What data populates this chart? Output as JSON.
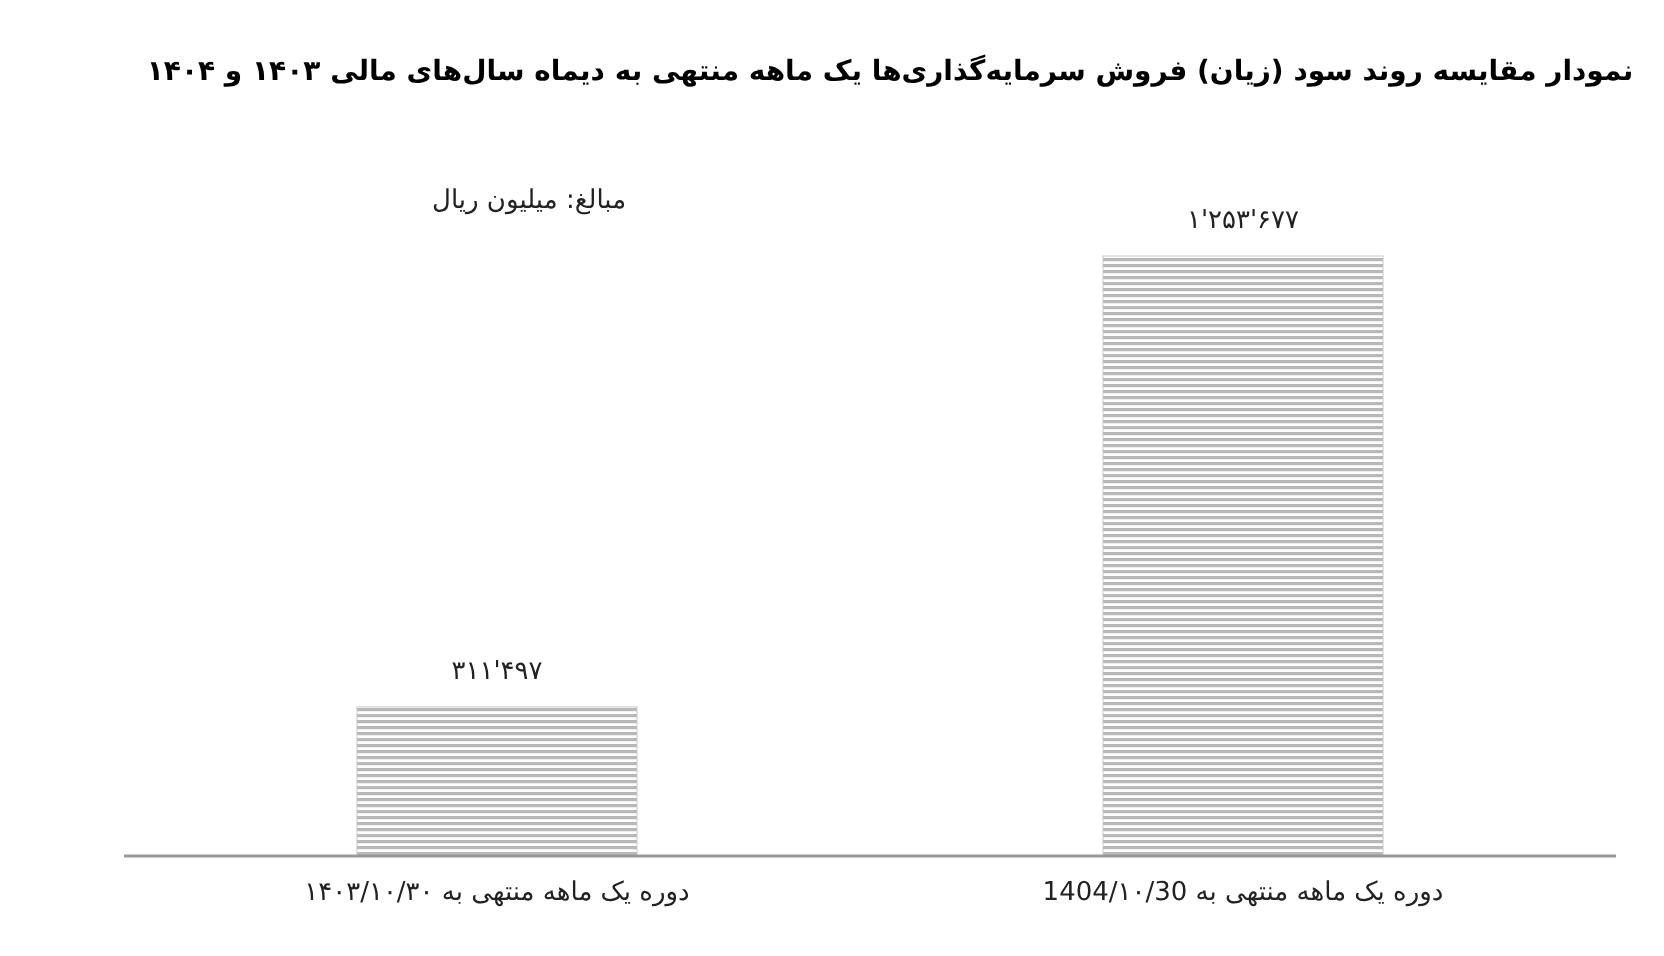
{
  "chart_data": {
    "type": "bar",
    "title": "نمودار مقایسه روند سود (زیان) فروش سرمایه‌گذاری‌ها یک ماهه منتهی به دیماه سال‌های مالی ۱۴۰۳ و ۱۴۰۴",
    "annotations": [
      "مبالغ: میلیون ریال"
    ],
    "categories": [
      "دوره یک ماهه منتهی به ۱۴۰۳/۱۰/۳۰",
      "دوره یک ماهه منتهی به 1404/۱۰/30"
    ],
    "values": [
      311497,
      1253677
    ],
    "value_labels": [
      "۳۱۱'۴۹۷",
      "۱'۲۵۳'۶۷۷"
    ],
    "color": "#b8b8b8"
  }
}
